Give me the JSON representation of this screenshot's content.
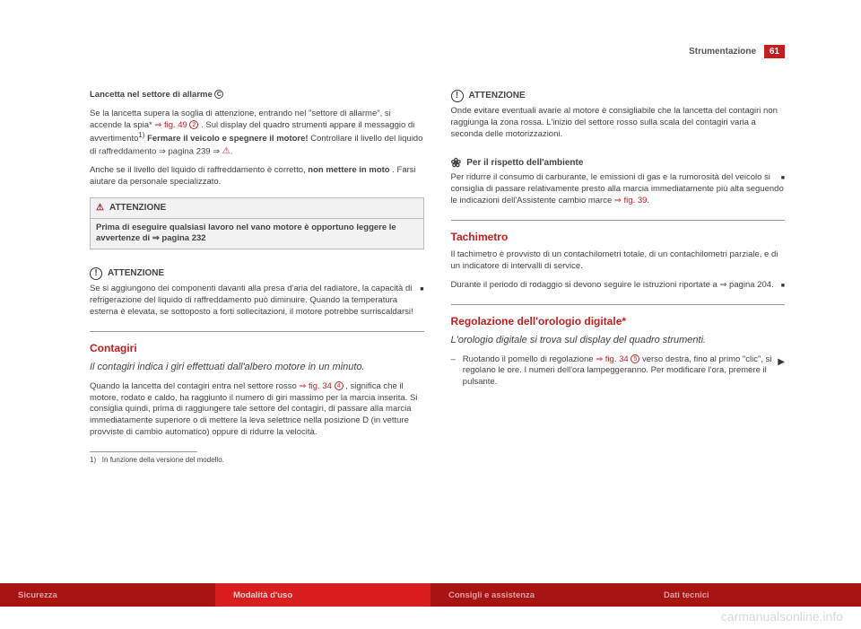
{
  "header": {
    "section": "Strumentazione",
    "page": "61"
  },
  "left": {
    "h1": "Lancetta nel settore di allarme ",
    "h1_marker": "C",
    "p1a": "Se la lancetta supera la soglia di attenzione, entrando nel \"settore di allarme\", si accende la spia* ",
    "p1_link": "⇒ fig. 49",
    "p1_marker": "2",
    "p1b": ". Sul display del quadro strumenti appare il messaggio di avvertimento",
    "p1_sup": "1)",
    "p1c": " Fermare il veicolo e spegnere il motore!",
    "p1d": " Controllare il livello del liquido di raffreddamento ⇒ pagina 239 ⇒ ",
    "p2a": "Anche se il livello del liquido di raffreddamento è corretto, ",
    "p2b": "non mettere in moto",
    "p2c": ". Farsi aiutare da personale specializzato.",
    "warnbox": {
      "title": "ATTENZIONE",
      "body": "Prima di eseguire qualsiasi lavoro nel vano motore è opportuno leggere le avvertenze di ⇒ pagina 232"
    },
    "att2_title": "ATTENZIONE",
    "att2_body": "Se si aggiungono dei componenti davanti alla presa d'aria del radiatore, la capacità di refrigerazione del liquido di raffreddamento può diminuire. Quando la temperatura esterna è elevata, se sottoposto a forti sollecitazioni, il motore potrebbe surriscaldarsi!",
    "contagiri": {
      "title": "Contagiri",
      "intro": "Il contagiri indica i giri effettuati dall'albero motore in un minuto.",
      "p_a": "Quando la lancetta del contagiri entra nel settore rosso ",
      "p_link": "⇒ fig. 34",
      "p_marker": "4",
      "p_b": ", significa che il motore, rodato e caldo, ha raggiunto il numero di giri massimo per la marcia inserita. Si consiglia quindi, prima di raggiungere tale settore del contagiri, di passare alla marcia immediatamente superiore o di mettere la leva selettrice nella posizione D (in vetture provviste di cambio automatico) oppure di ridurre la velocità."
    },
    "footnote": "In funzione della versione del modello.",
    "footnote_num": "1)"
  },
  "right": {
    "att_title": "ATTENZIONE",
    "att_body": "Onde evitare eventuali avarie al motore è consigliabile che la lancetta del contagiri non raggiunga la zona rossa. L'inizio del settore rosso sulla scala del contagiri varia a seconda delle motorizzazioni.",
    "env_title": "Per il rispetto dell'ambiente",
    "env_body_a": "Per ridurre il consumo di carburante, le emissioni di gas e la rumorosità del veicolo si consiglia di passare relativamente presto alla marcia immediatamente più alta seguendo le indicazioni dell'Assistente cambio marce ",
    "env_link": "⇒ fig. 39",
    "tachimetro": {
      "title": "Tachimetro",
      "p1": "Il tachimetro è provvisto di un contachilometri totale, di un contachilometri parziale, e di un indicatore di intervalli di service.",
      "p2": "Durante il periodo di rodaggio si devono seguire le istruzioni riportate a ⇒ pagina 204."
    },
    "orologio": {
      "title": "Regolazione dell'orologio digitale*",
      "intro": "L'orologio digitale si trova sul display del quadro strumenti.",
      "li_a": "Ruotando il pomello di regolazione ",
      "li_link": "⇒ fig. 34",
      "li_marker": "5",
      "li_b": " verso destra, fino al primo \"clic\", si regolano le ore. I numeri dell'ora lampeggeranno. Per modificare l'ora, premere il pulsante."
    }
  },
  "tabs": {
    "t1": "Sicurezza",
    "t2": "Modalità d'uso",
    "t3": "Consigli e assistenza",
    "t4": "Dati tecnici"
  },
  "watermark": "carmanualsonline.info"
}
